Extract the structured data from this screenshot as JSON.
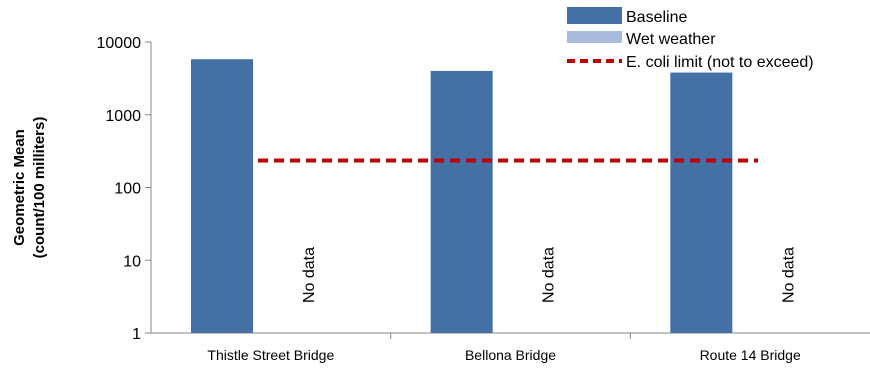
{
  "chart_data": {
    "type": "bar",
    "categories": [
      "Thistle Street Bridge",
      "Bellona Bridge",
      "Route 14 Bridge"
    ],
    "series": [
      {
        "name": "Baseline",
        "values": [
          5800,
          4000,
          3800
        ],
        "color": "#4470A6"
      },
      {
        "name": "Wet weather",
        "values": [
          null,
          null,
          null
        ],
        "color": "#A9BCDD"
      }
    ],
    "no_data_label": "No data",
    "reference_line": {
      "name": "E. coli limit (not to exceed)",
      "value": 235,
      "color": "#C00000"
    },
    "ylabel": [
      "Geometric Mean",
      "(count/100 milliters)"
    ],
    "yscale": "log",
    "ylim": [
      1,
      10000
    ],
    "yticks": [
      1,
      10,
      100,
      1000,
      10000
    ],
    "ytick_labels": [
      "1",
      "10",
      "100",
      "1000",
      "10000"
    ],
    "grid": false,
    "legend_position": "top-right"
  }
}
